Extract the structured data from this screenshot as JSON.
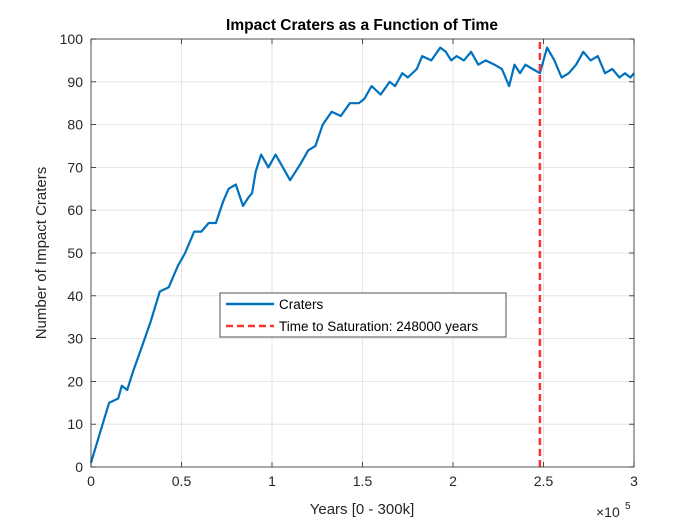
{
  "chart_data": {
    "type": "line",
    "title": "Impact Craters as a Function of Time",
    "xlabel": "Years [0 - 300k]",
    "ylabel": "Number of Impact Craters",
    "xlim": [
      0,
      300000
    ],
    "ylim": [
      0,
      100
    ],
    "x_ticks": [
      0,
      50000,
      100000,
      150000,
      200000,
      250000,
      300000
    ],
    "x_tick_labels": [
      "0",
      "0.5",
      "1",
      "1.5",
      "2",
      "2.5",
      "3"
    ],
    "y_ticks": [
      0,
      10,
      20,
      30,
      40,
      50,
      60,
      70,
      80,
      90,
      100
    ],
    "y_tick_labels": [
      "0",
      "10",
      "20",
      "30",
      "40",
      "50",
      "60",
      "70",
      "80",
      "90",
      "100"
    ],
    "x_exponent": {
      "base": "×10",
      "power": "5"
    },
    "grid": true,
    "legend_location": "center-left",
    "series": [
      {
        "name": "Craters",
        "color": "#0072bd",
        "x": [
          0,
          5000,
          10000,
          15000,
          17000,
          20000,
          23000,
          28000,
          33000,
          38000,
          43000,
          45000,
          48000,
          52000,
          57000,
          61000,
          65000,
          69000,
          73000,
          76000,
          80000,
          84000,
          87000,
          89000,
          91000,
          94000,
          98000,
          102000,
          106000,
          110000,
          113000,
          116000,
          120000,
          124000,
          128000,
          133000,
          138000,
          143000,
          148000,
          151000,
          155000,
          160000,
          165000,
          168000,
          172000,
          175000,
          180000,
          183000,
          188000,
          193000,
          196000,
          199000,
          202000,
          206000,
          210000,
          214000,
          218000,
          223000,
          227000,
          231000,
          234000,
          237000,
          240000,
          244000,
          248000,
          252000,
          256000,
          260000,
          264000,
          268000,
          272000,
          276000,
          280000,
          284000,
          288000,
          292000,
          295000,
          298000,
          300000
        ],
        "y": [
          1,
          8,
          15,
          16,
          19,
          18,
          22,
          28,
          34,
          41,
          42,
          44,
          47,
          50,
          55,
          55,
          57,
          57,
          62,
          65,
          66,
          61,
          63,
          64,
          69,
          73,
          70,
          73,
          70,
          67,
          69,
          71,
          74,
          75,
          80,
          83,
          82,
          85,
          85,
          86,
          89,
          87,
          90,
          89,
          92,
          91,
          93,
          96,
          95,
          98,
          97,
          95,
          96,
          95,
          97,
          94,
          95,
          94,
          93,
          89,
          94,
          92,
          94,
          93,
          92,
          98,
          95,
          91,
          92,
          94,
          97,
          95,
          96,
          92,
          93,
          91,
          92,
          91,
          92
        ]
      },
      {
        "name": "Time to Saturation: 248000 years",
        "color": "#ff3232",
        "style": "dashed",
        "x": [
          248000,
          248000
        ],
        "y": [
          0,
          100
        ]
      }
    ]
  }
}
